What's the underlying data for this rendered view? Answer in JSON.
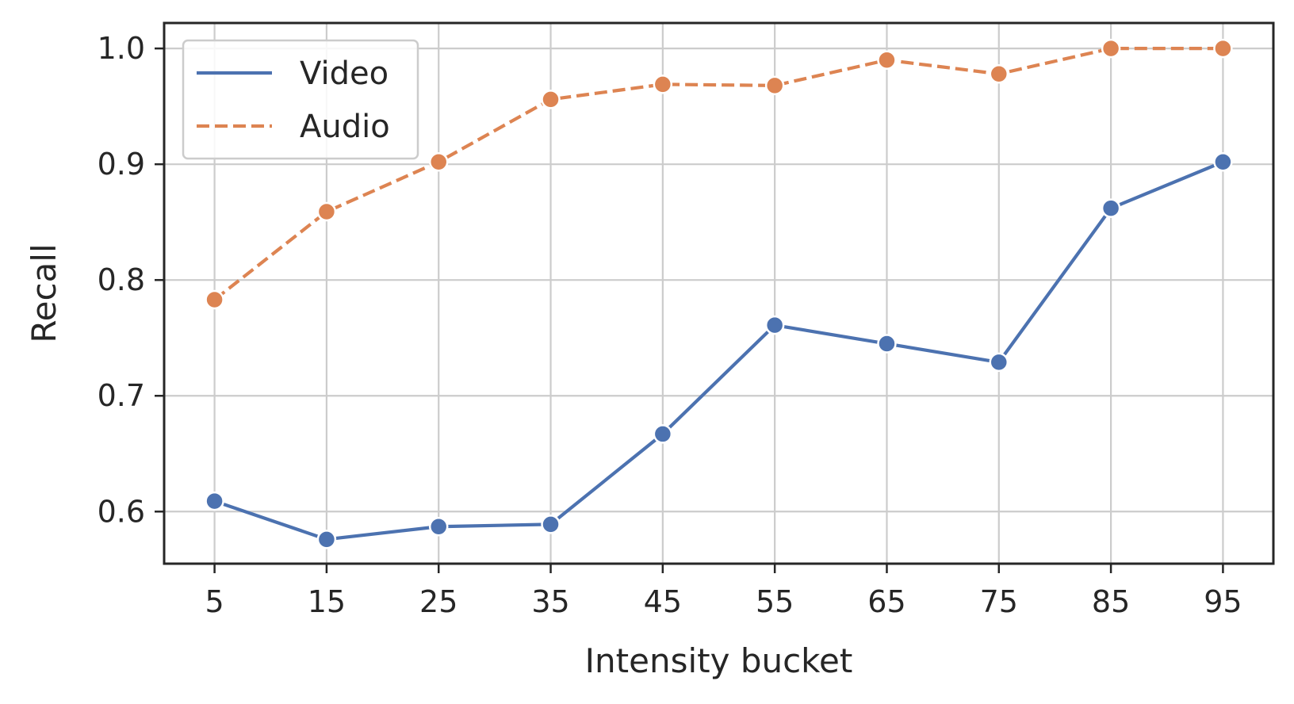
{
  "chart_data": {
    "type": "line",
    "title": "",
    "xlabel": "Intensity bucket",
    "ylabel": "Recall",
    "x": [
      5,
      15,
      25,
      35,
      45,
      55,
      65,
      75,
      85,
      95
    ],
    "x_tick_labels": [
      "5",
      "15",
      "25",
      "35",
      "45",
      "55",
      "65",
      "75",
      "85",
      "95"
    ],
    "y_ticks": [
      0.6,
      0.7,
      0.8,
      0.9,
      1.0
    ],
    "y_tick_labels": [
      "0.6",
      "0.7",
      "0.8",
      "0.9",
      "1.0"
    ],
    "xlim": [
      0.5,
      99.5
    ],
    "ylim": [
      0.555,
      1.022
    ],
    "grid": true,
    "legend_position": "top-left",
    "series": [
      {
        "name": "Video",
        "color": "#4c72b0",
        "line_style": "solid",
        "marker": "circle",
        "values": [
          0.609,
          0.576,
          0.587,
          0.589,
          0.667,
          0.761,
          0.745,
          0.729,
          0.862,
          0.902
        ]
      },
      {
        "name": "Audio",
        "color": "#dd8452",
        "line_style": "dashed",
        "marker": "circle",
        "values": [
          0.783,
          0.859,
          0.902,
          0.956,
          0.969,
          0.968,
          0.99,
          0.978,
          1.0,
          1.0
        ]
      }
    ]
  }
}
